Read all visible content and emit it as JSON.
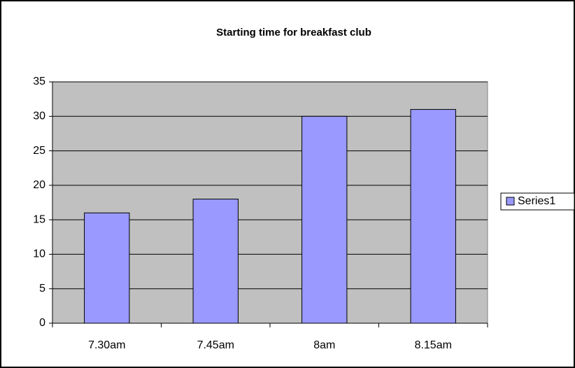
{
  "chart_data": {
    "type": "bar",
    "title": "Starting time for breakfast club",
    "categories": [
      "7.30am",
      "7.45am",
      "8am",
      "8.15am"
    ],
    "series": [
      {
        "name": "Series1",
        "color": "#9999ff",
        "values": [
          16,
          18,
          30,
          31
        ]
      }
    ],
    "ylim": [
      0,
      35
    ],
    "yticks": [
      0,
      5,
      10,
      15,
      20,
      25,
      30,
      35
    ],
    "grid": true,
    "legend": "right"
  }
}
